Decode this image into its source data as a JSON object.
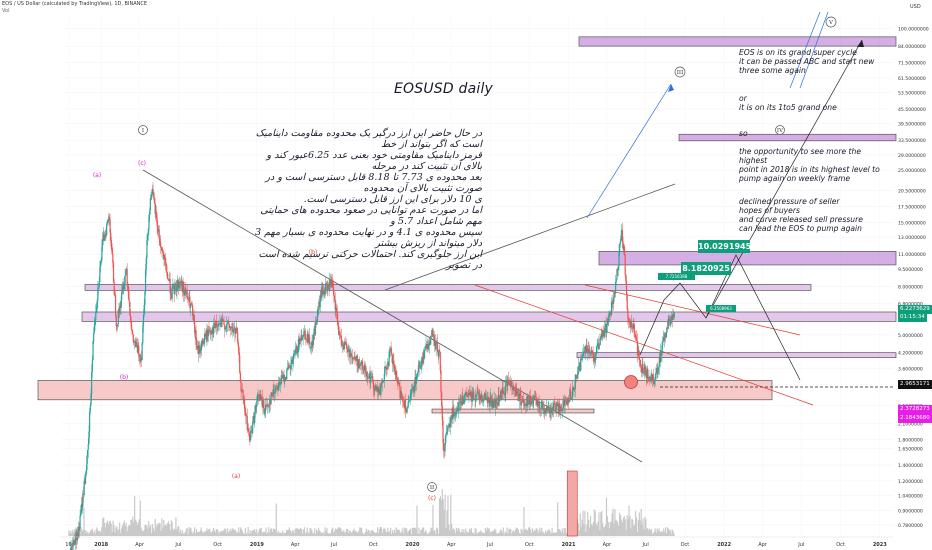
{
  "header": {
    "symbol_line": "EOS / US Dollar (calculated by TradingView), 1D, BINANCE",
    "vol_label": "Vol"
  },
  "annotations": {
    "title": "EOSUSD daily",
    "persian_text": "در حال حاضر این ارز درگیر یک محدوده مقاومت داینامیک است که اگر بتواند از خط\nقرمز داینامیک مقاومتی خود بعنی عدد 6.25عبور کند و بالای آن تثبیت کند در مرحله\nبعد محدوده ی 7.73 تا 8.18 قابل دسترسی است و در صورت تثبیت بالای آن محدوده\nی 10 دلار برای این ارز قابل دسترسی است.\nاما در صورت عدم توانایی در صعود محدوده های حمایتی مهم شامل اعداد 5.7 و\nسپس محدوده ی 4.1 و در نهایت محدوده ی بسیار مهم 3 دلار میتواند از ریزش بیشتر\nاین ارز جلوگیری کند. احتمالات حرکتی ترسیم شده است در تصویر",
    "english_1": "EOS  is on its grand super cycle\nit can be passed ABC  and start new\nthree some again",
    "or": "or",
    "english_2": "it is on its 1to5 grand one",
    "so": "so",
    "english_3": "the opportunity to see more the highest\npoint in 2018 is in its highest level to\npump again on weekly frame",
    "english_4": "declined pressure of seller\nhopes of buyers\nand curve released sell pressure\ncan lead the EOS to pump again",
    "target_1": "10.0291945",
    "target_2": "8.1820925",
    "target_3": "7.7216388",
    "target_4": "6.2508963"
  },
  "wave_labels": {
    "circle_I": "I",
    "circle_II": "II",
    "circle_III": "III",
    "circle_IV": "IV",
    "circle_V": "V",
    "a1": "(a)",
    "b1": "(b)",
    "c1": "(c)",
    "a2": "(a)",
    "b2": "(b)",
    "c2": "(c)"
  },
  "price_tags": {
    "current": "6.2273629",
    "countdown": "01:15:34",
    "level_1": "2.9653171",
    "level_2": "2.3728273",
    "level_3": "2.1843680"
  },
  "chart_data": {
    "type": "candlestick",
    "y_scale": "log",
    "ylabel": "USD",
    "ylim": [
      0.7,
      115
    ],
    "y_ticks": [
      "100.0000000",
      "84.0000000",
      "71.5000000",
      "61.5000000",
      "53.5000000",
      "45.5000000",
      "39.5000000",
      "33.5000000",
      "29.0000000",
      "25.0000000",
      "20.5000000",
      "17.5000000",
      "15.0000000",
      "13.0000000",
      "11.0000000",
      "9.5000000",
      "8.0000000",
      "6.8000000",
      "5.8000000",
      "5.0000000",
      "4.2000000",
      "3.6000000",
      "3.0000000",
      "2.5000000",
      "2.1000000",
      "1.8000000",
      "1.6500000",
      "1.4000000",
      "1.2000000",
      "1.0400000",
      "0.9000000",
      "0.7800000"
    ],
    "x_ticks": [
      "16",
      "2018",
      "Apr",
      "Jul",
      "Oct",
      "2019",
      "Apr",
      "Jul",
      "Oct",
      "2020",
      "Apr",
      "Jul",
      "Oct",
      "2021",
      "Apr",
      "Jul",
      "Oct",
      "2022",
      "Apr",
      "Jul",
      "Oct",
      "2023"
    ],
    "x_range": [
      "2017-10-01",
      "2023-02-01"
    ],
    "price_path": [
      [
        "2017-10-01",
        0.5
      ],
      [
        "2017-11-10",
        0.75
      ],
      [
        "2017-12-01",
        1.6
      ],
      [
        "2017-12-15",
        5.5
      ],
      [
        "2018-01-05",
        12.5
      ],
      [
        "2018-01-20",
        16.0
      ],
      [
        "2018-02-06",
        5.5
      ],
      [
        "2018-03-01",
        9.6
      ],
      [
        "2018-03-15",
        4.8
      ],
      [
        "2018-04-05",
        4.0
      ],
      [
        "2018-04-20",
        14.0
      ],
      [
        "2018-04-29",
        21.0
      ],
      [
        "2018-05-20",
        12.0
      ],
      [
        "2018-06-15",
        7.5
      ],
      [
        "2018-07-05",
        8.5
      ],
      [
        "2018-08-01",
        6.5
      ],
      [
        "2018-08-15",
        4.2
      ],
      [
        "2018-09-10",
        5.2
      ],
      [
        "2018-10-15",
        5.6
      ],
      [
        "2018-11-15",
        5.1
      ],
      [
        "2018-11-25",
        3.0
      ],
      [
        "2018-12-15",
        1.8
      ],
      [
        "2019-01-05",
        2.8
      ],
      [
        "2019-01-20",
        2.4
      ],
      [
        "2019-02-15",
        3.0
      ],
      [
        "2019-03-20",
        3.6
      ],
      [
        "2019-04-20",
        5.2
      ],
      [
        "2019-05-10",
        4.5
      ],
      [
        "2019-06-01",
        7.5
      ],
      [
        "2019-06-25",
        8.3
      ],
      [
        "2019-07-15",
        4.8
      ],
      [
        "2019-08-15",
        4.0
      ],
      [
        "2019-09-15",
        3.5
      ],
      [
        "2019-10-15",
        2.8
      ],
      [
        "2019-11-10",
        4.2
      ],
      [
        "2019-12-01",
        2.9
      ],
      [
        "2019-12-20",
        2.4
      ],
      [
        "2020-01-15",
        3.6
      ],
      [
        "2020-02-15",
        5.0
      ],
      [
        "2020-03-05",
        4.1
      ],
      [
        "2020-03-13",
        1.62
      ],
      [
        "2020-04-01",
        2.3
      ],
      [
        "2020-05-01",
        2.7
      ],
      [
        "2020-06-01",
        2.8
      ],
      [
        "2020-07-15",
        2.55
      ],
      [
        "2020-08-15",
        3.2
      ],
      [
        "2020-09-15",
        2.6
      ],
      [
        "2020-10-15",
        2.6
      ],
      [
        "2020-11-15",
        2.4
      ],
      [
        "2020-12-20",
        2.5
      ],
      [
        "2021-01-10",
        2.9
      ],
      [
        "2021-02-10",
        4.5
      ],
      [
        "2021-03-01",
        4.0
      ],
      [
        "2021-04-01",
        5.5
      ],
      [
        "2021-04-20",
        7.5
      ],
      [
        "2021-05-05",
        13.5
      ],
      [
        "2021-05-12",
        11.0
      ],
      [
        "2021-05-20",
        5.8
      ],
      [
        "2021-06-01",
        5.5
      ],
      [
        "2021-06-20",
        3.6
      ],
      [
        "2021-07-20",
        3.2
      ],
      [
        "2021-08-10",
        4.5
      ],
      [
        "2021-08-25",
        5.8
      ],
      [
        "2021-09-06",
        6.2
      ]
    ],
    "volume": "histogram at bottom, gray bars with spikes near Mar 2020 and Jan/May 2021",
    "zones": [
      {
        "name": "zone-top",
        "low": 84,
        "high": 92,
        "color": "#c693dc"
      },
      {
        "name": "zone-33",
        "low": 33.3,
        "high": 35.5,
        "color": "#c693dc"
      },
      {
        "name": "zone-10",
        "low": 9.9,
        "high": 11.3,
        "color": "#c693dc"
      },
      {
        "name": "zone-8",
        "low": 7.72,
        "high": 8.18,
        "color": "#d9b5e6"
      },
      {
        "name": "zone-6",
        "low": 5.7,
        "high": 6.25,
        "color": "#d9b5e6"
      },
      {
        "name": "zone-4",
        "low": 4.0,
        "high": 4.2,
        "color": "#d9b5e6"
      },
      {
        "name": "zone-3",
        "low": 2.65,
        "high": 3.2,
        "color": "#f5b7b7"
      },
      {
        "name": "zone-2.3",
        "low": 2.33,
        "high": 2.42,
        "color": "#f5b7b7"
      }
    ]
  }
}
